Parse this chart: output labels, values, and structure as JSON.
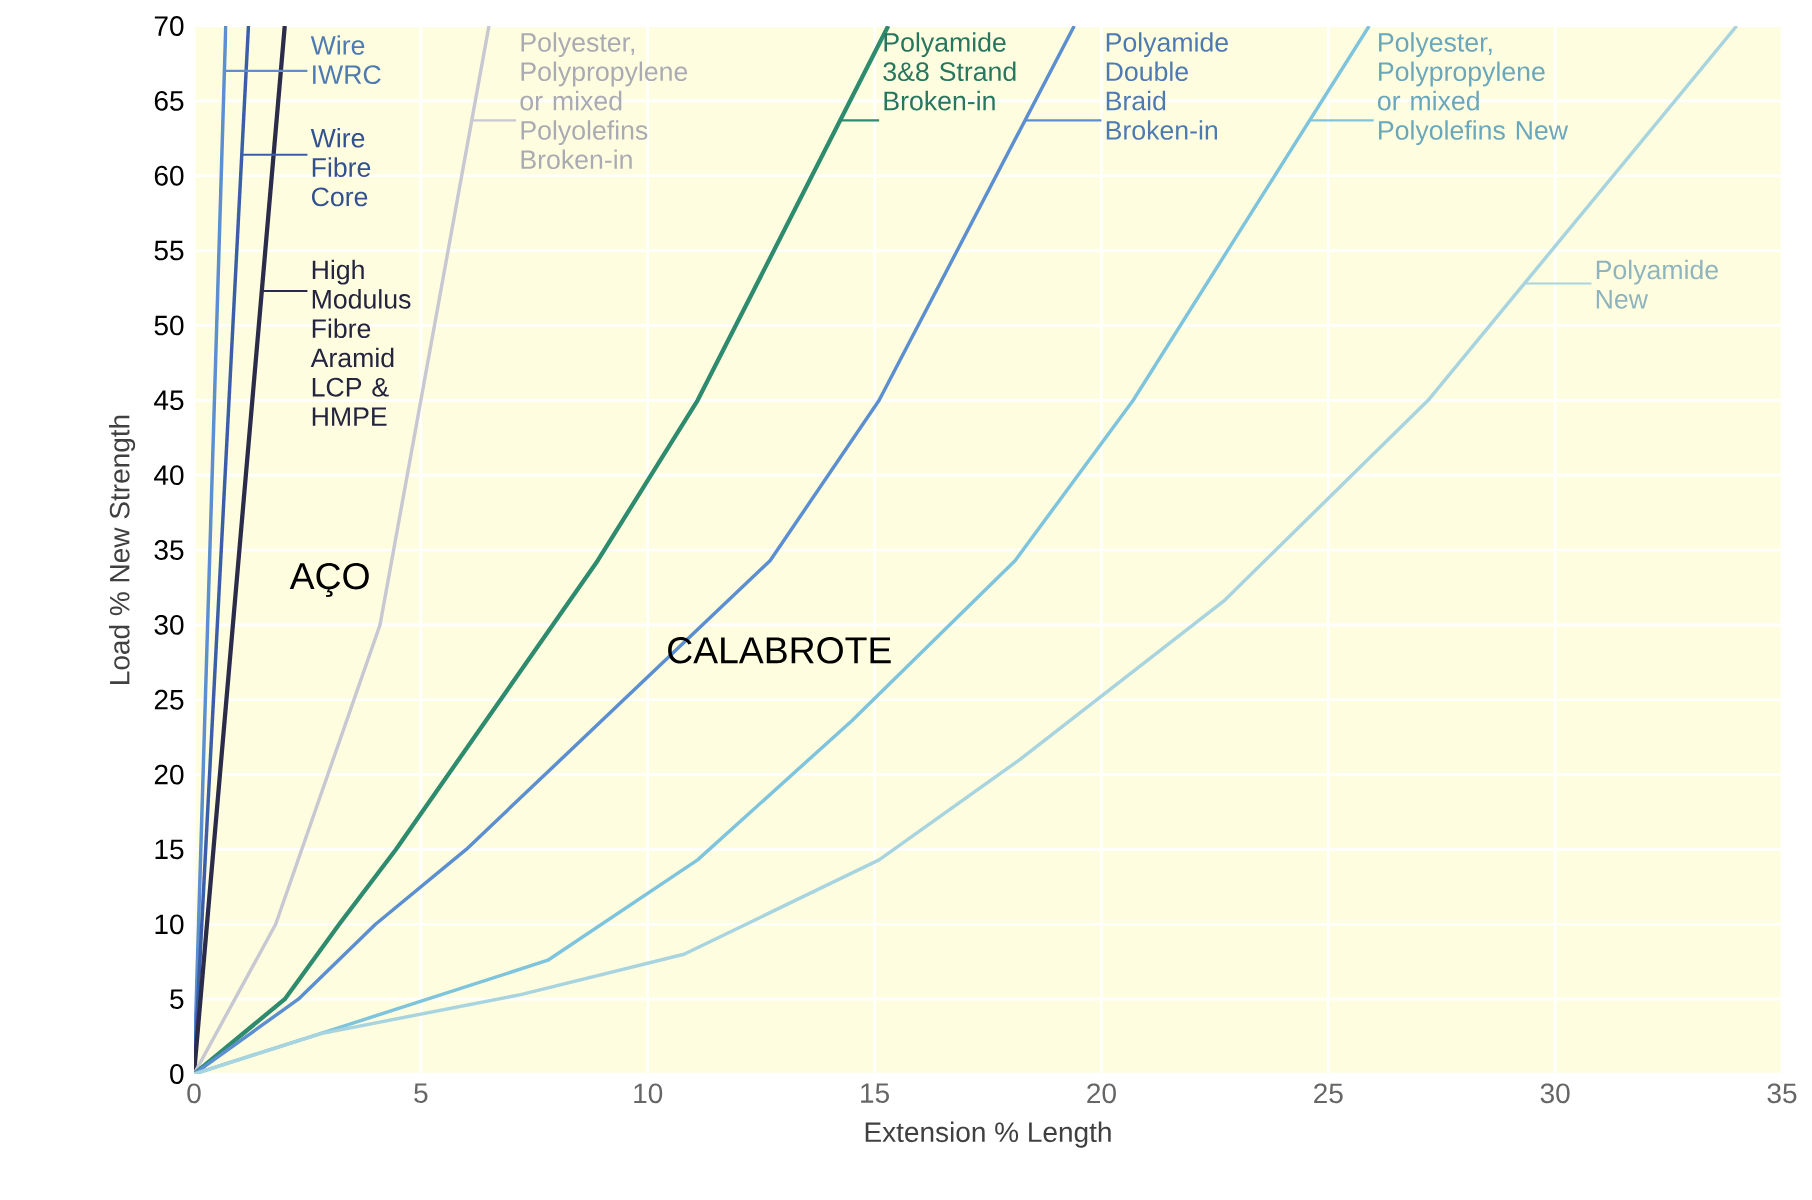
{
  "chart_data": {
    "type": "line",
    "xlabel": "Extension % Length",
    "ylabel": "Load % New Strength",
    "xlim": [
      0,
      35
    ],
    "ylim": [
      0,
      70
    ],
    "xticks": [
      0,
      5,
      10,
      15,
      20,
      25,
      30,
      35
    ],
    "yticks": [
      0,
      5,
      10,
      15,
      20,
      25,
      30,
      35,
      40,
      45,
      50,
      55,
      60,
      65,
      70
    ],
    "grid": true,
    "legend": "top",
    "annotations": [
      "AÇO",
      "CALABROTE"
    ],
    "series": [
      {
        "name": "Wire IWRC",
        "color": "#5b8fd0",
        "x": [
          0,
          0.7
        ],
        "values": [
          0,
          70
        ]
      },
      {
        "name": "Wire Fibre Core",
        "color": "#3a5fa8",
        "x": [
          0,
          1.2
        ],
        "values": [
          0,
          70
        ]
      },
      {
        "name": "High Modulus Fibre Aramid LCP & HMPE",
        "color": "#2b2b4a",
        "x": [
          0,
          2.0
        ],
        "values": [
          0,
          70
        ]
      },
      {
        "name": "Polyester, Polypropylene or mixed Polyolefins Broken-in",
        "color": "#c8c8d2",
        "x": [
          0,
          1.8,
          4.1,
          6.5
        ],
        "values": [
          0,
          10,
          30,
          70
        ]
      },
      {
        "name": "Polyamide 3&8 Strand Broken-in",
        "color": "#2e8b6e",
        "x": [
          0,
          2.0,
          3.2,
          4.45,
          8.9,
          11.1,
          15.3
        ],
        "values": [
          0,
          5,
          10,
          15,
          34.3,
          45,
          70
        ]
      },
      {
        "name": "Polyamide Double Braid Broken-in",
        "color": "#5b8fd0",
        "x": [
          0,
          2.3,
          4.0,
          6.0,
          12.7,
          15.1,
          19.4
        ],
        "values": [
          0,
          5,
          10,
          15,
          34.3,
          45,
          70
        ]
      },
      {
        "name": "Polyester, Polypropylene or mixed Polyolefins New",
        "color": "#7ec4dc",
        "x": [
          0,
          3.3,
          7.8,
          11.1,
          14.5,
          18.1,
          20.7,
          25.9
        ],
        "values": [
          0,
          3.2,
          7.6,
          14.3,
          23.6,
          34.3,
          45,
          70
        ]
      },
      {
        "name": "Polyamide New",
        "color": "#a8d4e0",
        "x": [
          0,
          2.8,
          7.2,
          10.8,
          15.1,
          18.2,
          22.7,
          27.2,
          34.0
        ],
        "values": [
          0,
          2.7,
          5.3,
          8.0,
          14.3,
          21.0,
          31.6,
          45,
          70
        ]
      }
    ]
  }
}
